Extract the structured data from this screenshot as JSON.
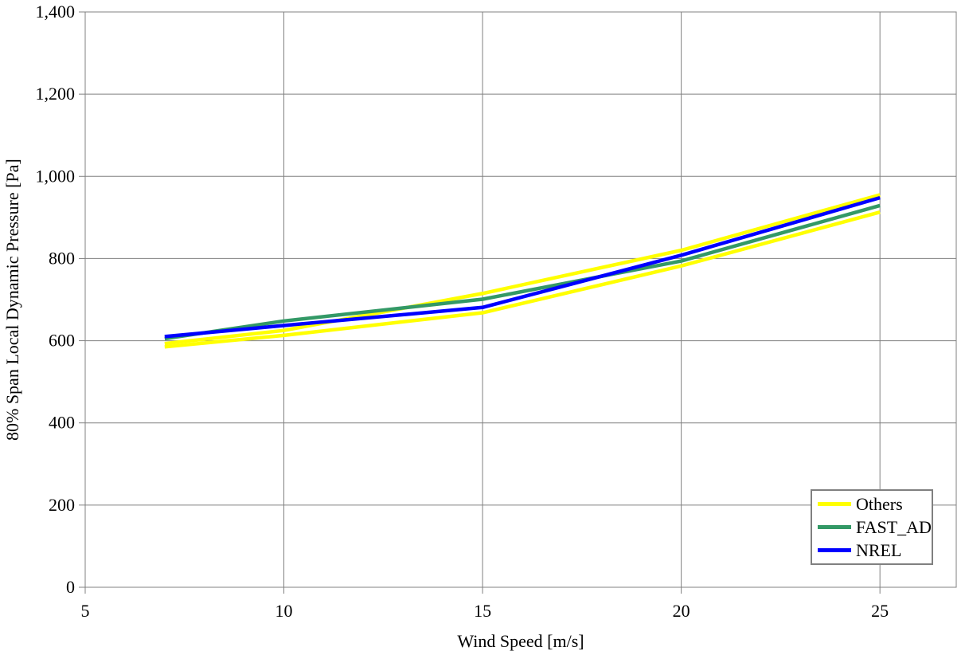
{
  "chart_data": {
    "type": "line",
    "title": "",
    "xlabel": "Wind Speed [m/s]",
    "ylabel": "80% Span Local Dynamic Pressure [Pa]",
    "xlim": [
      5,
      26.92
    ],
    "ylim": [
      0,
      1400
    ],
    "x_ticks": [
      5,
      10,
      15,
      20,
      25
    ],
    "x_tick_labels": [
      "5",
      "10",
      "15",
      "20",
      "25"
    ],
    "y_ticks": [
      0,
      200,
      400,
      600,
      800,
      1000,
      1200,
      1400
    ],
    "y_tick_labels": [
      "0",
      "200",
      "400",
      "600",
      "800",
      "1,000",
      "1,200",
      "1,400"
    ],
    "grid": true,
    "x": [
      7,
      10,
      15,
      20,
      25
    ],
    "series": [
      {
        "name": "Others",
        "color": "#FFFF00",
        "values": [
          593,
          625,
          715,
          820,
          955
        ]
      },
      {
        "name": "Others",
        "color": "#FFFF00",
        "values": [
          585,
          613,
          668,
          782,
          913
        ]
      },
      {
        "name": "FAST_AD",
        "color": "#339966",
        "values": [
          605,
          648,
          701,
          794,
          929
        ]
      },
      {
        "name": "NREL",
        "color": "#0000FF",
        "values": [
          610,
          637,
          681,
          808,
          948
        ]
      }
    ],
    "legend_position": "bottom-right",
    "legend": [
      {
        "label": "Others",
        "color": "#FFFF00"
      },
      {
        "label": "FAST_AD",
        "color": "#339966"
      },
      {
        "label": "NREL",
        "color": "#0000FF"
      }
    ],
    "colors": {
      "grid": "#808080",
      "axis": "#808080",
      "tick": "#808080",
      "text": "#000000",
      "plot_background": "#FFFFFF"
    },
    "line_width": 4.5
  }
}
